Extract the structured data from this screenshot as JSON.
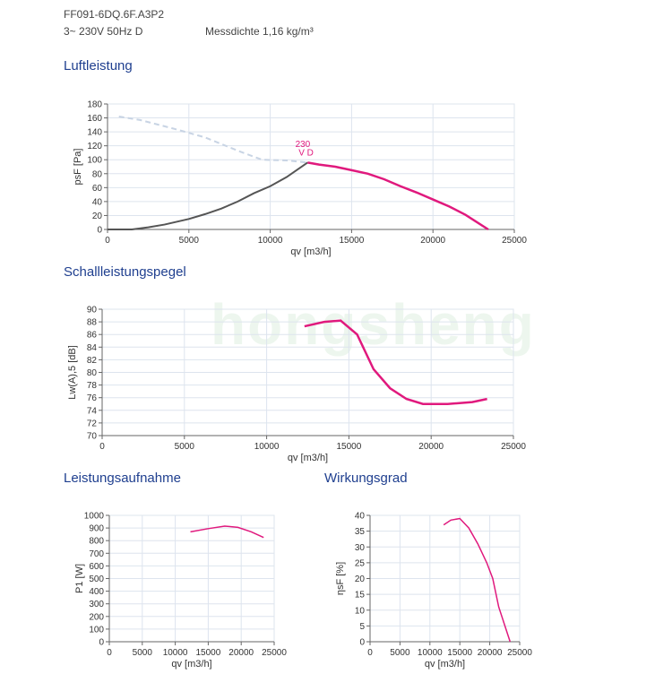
{
  "header": {
    "model": "FF091-6DQ.6F.A3P2",
    "supply": "3~ 230V 50Hz D",
    "density": "Messdichte 1,16 kg/m³"
  },
  "watermark": "hongsheng",
  "colors": {
    "pink": "#e0197d",
    "grey": "#555555",
    "dash": "#c8d4e4",
    "grid": "#dde4ee"
  },
  "chart_data": [
    {
      "id": "c1",
      "type": "line",
      "title": "Luftleistung",
      "xlabel": "qv [m3/h]",
      "ylabel": "psF [Pa]",
      "xlim": [
        0,
        25000
      ],
      "ylim": [
        0,
        180
      ],
      "xticks": [
        0,
        5000,
        10000,
        15000,
        20000,
        25000
      ],
      "yticks": [
        0,
        20,
        40,
        60,
        80,
        100,
        120,
        140,
        160,
        180
      ],
      "annotation": [
        "230",
        "V D"
      ],
      "series": [
        {
          "name": "dashed",
          "style": "dash",
          "x": [
            700,
            2000,
            4000,
            6000,
            8000,
            9500,
            11000,
            12300
          ],
          "y": [
            162,
            157,
            145,
            132,
            113,
            100,
            99,
            96
          ]
        },
        {
          "name": "grey",
          "style": "grey",
          "x": [
            0,
            1500,
            2500,
            3500,
            5000,
            6000,
            7000,
            8000,
            9000,
            10000,
            11000,
            12300
          ],
          "y": [
            0,
            0,
            3,
            7,
            15,
            22,
            30,
            40,
            52,
            62,
            75,
            96
          ]
        },
        {
          "name": "230 V D",
          "style": "pink",
          "x": [
            12300,
            13000,
            14000,
            15000,
            16000,
            17000,
            18000,
            19000,
            20000,
            21000,
            22000,
            23400
          ],
          "y": [
            96,
            93,
            90,
            85,
            80,
            72,
            62,
            53,
            43,
            33,
            21,
            0
          ]
        }
      ]
    },
    {
      "id": "c2",
      "type": "line",
      "title": "Schallleistungspegel",
      "xlabel": "qv [m3/h]",
      "ylabel": "Lw(A),5 [dB]",
      "xlim": [
        0,
        25000
      ],
      "ylim": [
        70,
        90
      ],
      "xticks": [
        0,
        5000,
        10000,
        15000,
        20000,
        25000
      ],
      "yticks": [
        70,
        72,
        74,
        76,
        78,
        80,
        82,
        84,
        86,
        88,
        90
      ],
      "series": [
        {
          "name": "230 V D",
          "style": "pink",
          "x": [
            12300,
            13500,
            14500,
            15500,
            16500,
            17500,
            18500,
            19500,
            21000,
            22500,
            23400
          ],
          "y": [
            87.3,
            88,
            88.2,
            86,
            80.5,
            77.5,
            75.8,
            75,
            75,
            75.3,
            75.8
          ]
        }
      ]
    },
    {
      "id": "c3",
      "type": "line",
      "title": "Leistungsaufnahme",
      "xlabel": "qv [m3/h]",
      "ylabel": "P1 [W]",
      "xlim": [
        0,
        25000
      ],
      "ylim": [
        0,
        1000
      ],
      "xticks": [
        0,
        5000,
        10000,
        15000,
        20000,
        25000
      ],
      "yticks": [
        0,
        100,
        200,
        300,
        400,
        500,
        600,
        700,
        800,
        900,
        1000
      ],
      "series": [
        {
          "name": "230 V D",
          "style": "pinkthin",
          "x": [
            12300,
            15000,
            17500,
            19500,
            21500,
            23400
          ],
          "y": [
            870,
            895,
            915,
            905,
            870,
            825
          ]
        }
      ]
    },
    {
      "id": "c4",
      "type": "line",
      "title": "Wirkungsgrad",
      "xlabel": "qv [m3/h]",
      "ylabel": "ηsF [%]",
      "xlim": [
        0,
        25000
      ],
      "ylim": [
        0,
        40
      ],
      "xticks": [
        0,
        5000,
        10000,
        15000,
        20000,
        25000
      ],
      "yticks": [
        0,
        5,
        10,
        15,
        20,
        25,
        30,
        35,
        40
      ],
      "series": [
        {
          "name": "230 V D",
          "style": "pinkthin",
          "x": [
            12300,
            13500,
            15000,
            16500,
            18000,
            19500,
            20500,
            21500,
            23400
          ],
          "y": [
            37,
            38.5,
            39,
            36,
            31,
            25,
            20,
            11,
            0
          ]
        }
      ]
    }
  ]
}
